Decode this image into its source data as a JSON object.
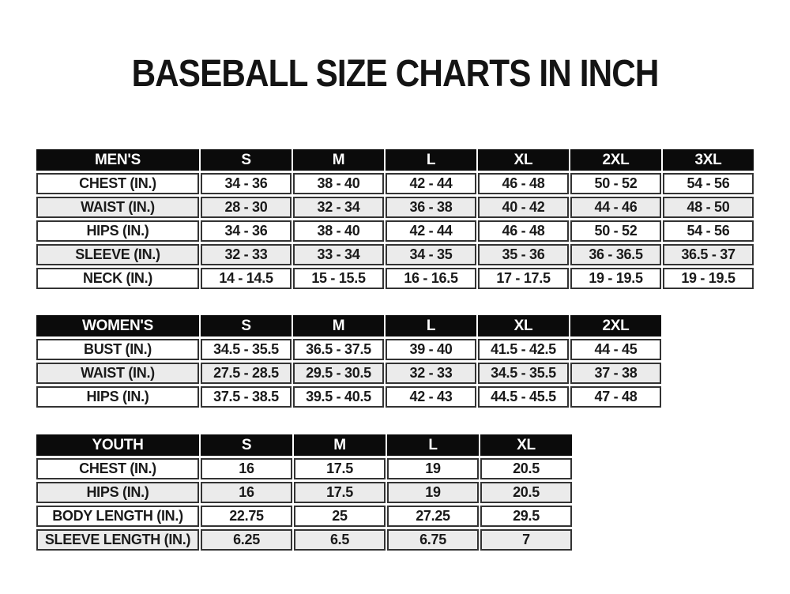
{
  "title": "BASEBALL SIZE CHARTS IN INCH",
  "colors": {
    "header_bg": "#0b0b0b",
    "header_text": "#ffffff",
    "row_stripe": "#ebebeb",
    "cell_border": "#333333",
    "page_bg": "#ffffff"
  },
  "tables": {
    "mens": {
      "name": "MEN'S",
      "sizes": [
        "S",
        "M",
        "L",
        "XL",
        "2XL",
        "3XL"
      ],
      "rows": [
        {
          "label": "CHEST (IN.)",
          "values": [
            "34 - 36",
            "38 - 40",
            "42 - 44",
            "46 - 48",
            "50 - 52",
            "54 - 56"
          ]
        },
        {
          "label": "WAIST (IN.)",
          "values": [
            "28 - 30",
            "32 - 34",
            "36 - 38",
            "40 - 42",
            "44 - 46",
            "48 - 50"
          ]
        },
        {
          "label": "HIPS (IN.)",
          "values": [
            "34 - 36",
            "38 - 40",
            "42 - 44",
            "46 - 48",
            "50 - 52",
            "54 - 56"
          ]
        },
        {
          "label": "SLEEVE (IN.)",
          "values": [
            "32 - 33",
            "33 - 34",
            "34 - 35",
            "35 - 36",
            "36 - 36.5",
            "36.5 - 37"
          ]
        },
        {
          "label": "NECK (IN.)",
          "values": [
            "14 - 14.5",
            "15 - 15.5",
            "16 - 16.5",
            "17 - 17.5",
            "19 - 19.5",
            "19 - 19.5"
          ]
        }
      ]
    },
    "womens": {
      "name": "WOMEN'S",
      "sizes": [
        "S",
        "M",
        "L",
        "XL",
        "2XL"
      ],
      "rows": [
        {
          "label": "BUST (IN.)",
          "values": [
            "34.5 - 35.5",
            "36.5 - 37.5",
            "39 - 40",
            "41.5 - 42.5",
            "44 - 45"
          ]
        },
        {
          "label": "WAIST (IN.)",
          "values": [
            "27.5 - 28.5",
            "29.5 - 30.5",
            "32 - 33",
            "34.5 - 35.5",
            "37 - 38"
          ]
        },
        {
          "label": "HIPS (IN.)",
          "values": [
            "37.5 - 38.5",
            "39.5 - 40.5",
            "42 - 43",
            "44.5 - 45.5",
            "47 - 48"
          ]
        }
      ]
    },
    "youth": {
      "name": "YOUTH",
      "sizes": [
        "S",
        "M",
        "L",
        "XL"
      ],
      "rows": [
        {
          "label": "CHEST (IN.)",
          "values": [
            "16",
            "17.5",
            "19",
            "20.5"
          ]
        },
        {
          "label": "HIPS (IN.)",
          "values": [
            "16",
            "17.5",
            "19",
            "20.5"
          ]
        },
        {
          "label": "BODY LENGTH (IN.)",
          "values": [
            "22.75",
            "25",
            "27.25",
            "29.5"
          ]
        },
        {
          "label": "SLEEVE LENGTH (IN.)",
          "values": [
            "6.25",
            "6.5",
            "6.75",
            "7"
          ]
        }
      ]
    }
  }
}
